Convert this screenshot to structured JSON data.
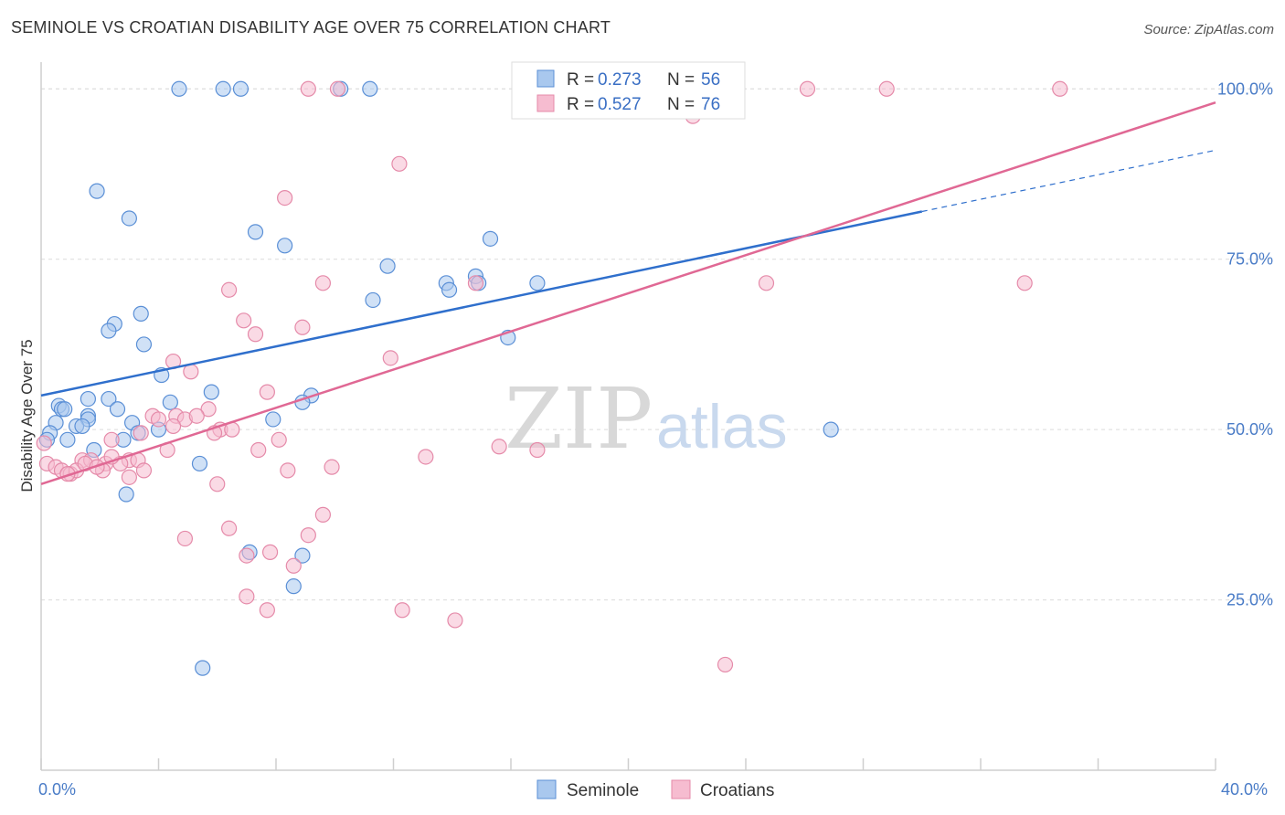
{
  "title": "SEMINOLE VS CROATIAN DISABILITY AGE OVER 75 CORRELATION CHART",
  "source": "Source: ZipAtlas.com",
  "watermark": {
    "zip": "ZIP",
    "atlas": "atlas"
  },
  "colors": {
    "seminole_fill": "#a9c8ee",
    "seminole_stroke": "#5a8fd6",
    "seminole_line": "#2f6fcc",
    "croatians_fill": "#f6bcd0",
    "croatians_stroke": "#e58aa9",
    "croatians_line": "#e06894",
    "grid": "#dcdcdc",
    "tick_label": "#4a7cc7"
  },
  "legend": {
    "rows": [
      {
        "r_label": "R = ",
        "r_value": "0.273",
        "n_label": "N = ",
        "n_value": "56"
      },
      {
        "r_label": "R = ",
        "r_value": "0.527",
        "n_label": "N = ",
        "n_value": "76"
      }
    ]
  },
  "chart_data": {
    "type": "scatter",
    "title": "SEMINOLE VS CROATIAN DISABILITY AGE OVER 75 CORRELATION CHART",
    "xlabel": "",
    "ylabel": "Disability Age Over 75",
    "xlim": [
      0,
      40
    ],
    "ylim": [
      0,
      105
    ],
    "x_tick_labels": [
      "0.0%",
      "40.0%"
    ],
    "y_ticks": [
      25,
      50,
      75,
      100
    ],
    "y_tick_labels": [
      "25.0%",
      "50.0%",
      "75.0%",
      "100.0%"
    ],
    "grid": "horizontal dashed",
    "legend_position": "top-center",
    "series": [
      {
        "name": "Seminole",
        "r": 0.273,
        "n": 56,
        "trend": {
          "x0": 0,
          "y0": 55,
          "x1": 30,
          "y1": 82,
          "dashed_to_x": 40,
          "dashed_to_y": 91
        },
        "points": [
          [
            4.7,
            100
          ],
          [
            6.2,
            100
          ],
          [
            6.8,
            100
          ],
          [
            10.2,
            100
          ],
          [
            11.2,
            100
          ],
          [
            1.9,
            85
          ],
          [
            3.0,
            81
          ],
          [
            7.3,
            79
          ],
          [
            8.3,
            77
          ],
          [
            15.3,
            78
          ],
          [
            11.8,
            74
          ],
          [
            13.8,
            71.5
          ],
          [
            13.9,
            70.5
          ],
          [
            14.8,
            72.5
          ],
          [
            14.9,
            71.5
          ],
          [
            16.9,
            71.5
          ],
          [
            11.3,
            69
          ],
          [
            3.4,
            67
          ],
          [
            2.5,
            65.5
          ],
          [
            2.3,
            64.5
          ],
          [
            15.9,
            63.5
          ],
          [
            3.5,
            62.5
          ],
          [
            4.1,
            58
          ],
          [
            5.8,
            55.5
          ],
          [
            9.2,
            55
          ],
          [
            8.9,
            54
          ],
          [
            4.4,
            54
          ],
          [
            0.6,
            53.5
          ],
          [
            0.7,
            53
          ],
          [
            1.6,
            54.5
          ],
          [
            2.3,
            54.5
          ],
          [
            2.6,
            53
          ],
          [
            0.8,
            53
          ],
          [
            1.6,
            52
          ],
          [
            3.1,
            51
          ],
          [
            1.6,
            51.5
          ],
          [
            1.2,
            50.5
          ],
          [
            1.4,
            50.5
          ],
          [
            0.5,
            51
          ],
          [
            0.3,
            49.5
          ],
          [
            3.3,
            49.5
          ],
          [
            4.0,
            50
          ],
          [
            7.9,
            51.5
          ],
          [
            0.9,
            48.5
          ],
          [
            2.8,
            48.5
          ],
          [
            0.2,
            48.5
          ],
          [
            1.8,
            47
          ],
          [
            5.4,
            45
          ],
          [
            2.9,
            40.5
          ],
          [
            7.1,
            32
          ],
          [
            8.9,
            31.5
          ],
          [
            8.6,
            27
          ],
          [
            5.5,
            15
          ],
          [
            26.9,
            50
          ]
        ]
      },
      {
        "name": "Croatians",
        "r": 0.527,
        "n": 76,
        "trend": {
          "x0": 0,
          "y0": 42,
          "x1": 40,
          "y1": 98
        },
        "points": [
          [
            9.1,
            100
          ],
          [
            10.1,
            100
          ],
          [
            22.2,
            100
          ],
          [
            26.1,
            100
          ],
          [
            28.8,
            100
          ],
          [
            34.7,
            100
          ],
          [
            12.2,
            89
          ],
          [
            8.3,
            84
          ],
          [
            22.2,
            96
          ],
          [
            9.6,
            71.5
          ],
          [
            6.4,
            70.5
          ],
          [
            14.8,
            71.5
          ],
          [
            24.7,
            71.5
          ],
          [
            33.5,
            71.5
          ],
          [
            6.9,
            66
          ],
          [
            8.9,
            65
          ],
          [
            7.3,
            64
          ],
          [
            11.9,
            60.5
          ],
          [
            4.5,
            60
          ],
          [
            5.1,
            58.5
          ],
          [
            7.7,
            55.5
          ],
          [
            4.6,
            52
          ],
          [
            5.7,
            53
          ],
          [
            4.9,
            51.5
          ],
          [
            6.1,
            50
          ],
          [
            5.3,
            52
          ],
          [
            3.8,
            52
          ],
          [
            4.0,
            51.5
          ],
          [
            6.5,
            50
          ],
          [
            5.9,
            49.5
          ],
          [
            4.5,
            50.5
          ],
          [
            3.4,
            49.5
          ],
          [
            2.4,
            48.5
          ],
          [
            8.1,
            48.5
          ],
          [
            15.6,
            47.5
          ],
          [
            16.9,
            47
          ],
          [
            4.3,
            47
          ],
          [
            7.4,
            47
          ],
          [
            1.4,
            45.5
          ],
          [
            1.7,
            45.5
          ],
          [
            2.2,
            45
          ],
          [
            3.0,
            45.5
          ],
          [
            0.2,
            45
          ],
          [
            0.5,
            44.5
          ],
          [
            0.7,
            44
          ],
          [
            1.0,
            43.5
          ],
          [
            1.2,
            44
          ],
          [
            1.5,
            45
          ],
          [
            2.1,
            44
          ],
          [
            2.7,
            45
          ],
          [
            3.3,
            45.5
          ],
          [
            3.5,
            44
          ],
          [
            0.9,
            43.5
          ],
          [
            1.9,
            44.5
          ],
          [
            2.4,
            46
          ],
          [
            3.0,
            43
          ],
          [
            13.1,
            46
          ],
          [
            9.9,
            44.5
          ],
          [
            8.4,
            44
          ],
          [
            6.0,
            42
          ],
          [
            9.6,
            37.5
          ],
          [
            6.4,
            35.5
          ],
          [
            9.1,
            34.5
          ],
          [
            4.9,
            34
          ],
          [
            7.0,
            31.5
          ],
          [
            7.8,
            32
          ],
          [
            8.6,
            30
          ],
          [
            7.0,
            25.5
          ],
          [
            7.7,
            23.5
          ],
          [
            12.3,
            23.5
          ],
          [
            14.1,
            22
          ],
          [
            23.3,
            15.5
          ],
          [
            0.1,
            48
          ]
        ]
      }
    ]
  }
}
